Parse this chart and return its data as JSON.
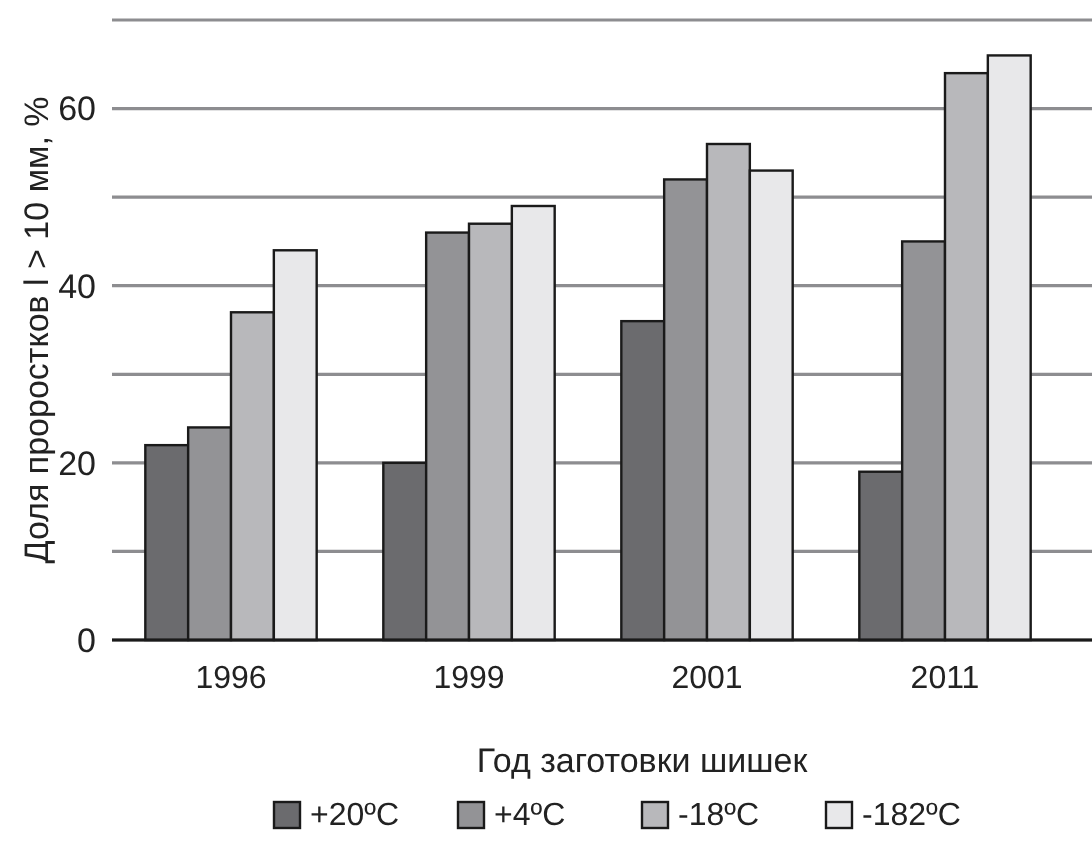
{
  "chart_data": {
    "type": "bar",
    "xlabel": "Год заготовки шишек",
    "ylabel": "Доля проростков l > 10 мм, %",
    "categories": [
      "1996",
      "1999",
      "2001",
      "2011"
    ],
    "series": [
      {
        "name": "+20ºC",
        "color": "#6b6b6e",
        "values": [
          22,
          20,
          36,
          19
        ]
      },
      {
        "name": "+4ºC",
        "color": "#939396",
        "values": [
          24,
          46,
          52,
          45
        ]
      },
      {
        "name": "-18ºC",
        "color": "#b8b8bb",
        "values": [
          37,
          47,
          56,
          64
        ]
      },
      {
        "name": "-182ºC",
        "color": "#e8e8ea",
        "values": [
          44,
          49,
          53,
          66
        ]
      }
    ],
    "ylim": [
      0,
      70
    ],
    "yticks": [
      0,
      {
        "value": 10,
        "label": null
      },
      20,
      {
        "value": 30,
        "label": null
      },
      40,
      {
        "value": 50,
        "label": null
      },
      60,
      {
        "value": 70,
        "label": null
      }
    ],
    "grid": "y",
    "legend": "bottom"
  }
}
